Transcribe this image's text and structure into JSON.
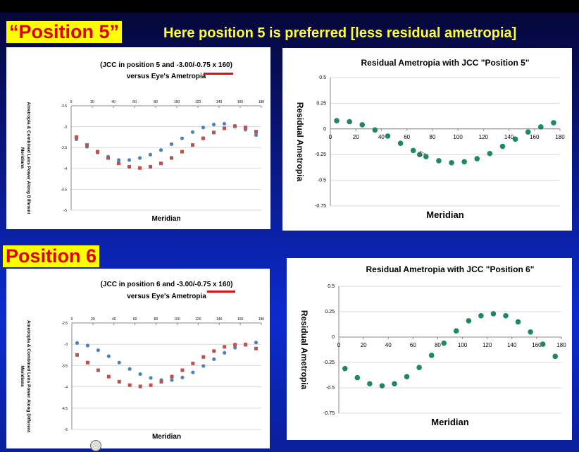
{
  "headline": "Here position 5 is preferred [less residual ametropia]",
  "labels": {
    "pos5": "“Position 5”",
    "pos6": "Position 6"
  },
  "colors": {
    "eye": "#4f81bd",
    "lens": "#c0504d",
    "residual": "#1e8a5c",
    "label_bg": "#ffff00",
    "label_fg": "#e00000",
    "headline": "#ffff33"
  },
  "chart_data": [
    {
      "type": "scatter",
      "title": "(JCC in position 5 and -3.00/-0.75 x 160)\nversus Eye's Ametropia",
      "xlabel": "Meridian",
      "ylabel": "Ametropia & Combined Lens Power Along Different Meridians",
      "xlim": [
        0,
        180
      ],
      "ylim": [
        -5,
        -2.5
      ],
      "xticks": [
        "0",
        "20",
        "40",
        "60",
        "80",
        "100",
        "120",
        "140",
        "160",
        "180"
      ],
      "yticks": [
        "-2.5",
        "-3",
        "-3.5",
        "-4",
        "-4.5",
        "-5"
      ],
      "x": [
        5,
        15,
        25,
        35,
        45,
        55,
        65,
        75,
        85,
        95,
        105,
        115,
        125,
        135,
        145,
        155,
        165,
        175
      ],
      "series": [
        {
          "values": [
            -3.3,
            -3.48,
            -3.62,
            -3.72,
            -3.8,
            -3.8,
            -3.75,
            -3.67,
            -3.56,
            -3.42,
            -3.28,
            -3.13,
            -3.02,
            -2.95,
            -2.93,
            -2.98,
            -3.07,
            -3.2
          ]
        },
        {
          "values": [
            -3.25,
            -3.44,
            -3.6,
            -3.75,
            -3.88,
            -3.96,
            -3.99,
            -3.96,
            -3.88,
            -3.75,
            -3.6,
            -3.44,
            -3.28,
            -3.14,
            -3.04,
            -2.99,
            -3.02,
            -3.12
          ]
        }
      ]
    },
    {
      "type": "scatter",
      "title": "Residual Ametropia with JCC \"Position 5\"",
      "xlabel": "Meridian",
      "ylabel": "Residual Ametropia",
      "xlim": [
        0,
        180
      ],
      "ylim": [
        -0.75,
        0.5
      ],
      "xticks": [
        "0",
        "20",
        "40",
        "60",
        "80",
        "100",
        "120",
        "140",
        "160",
        "180"
      ],
      "yticks": [
        "0.5",
        "0.25",
        "0",
        "-0.25",
        "-0.5",
        "-0.75"
      ],
      "x": [
        5,
        15,
        25,
        35,
        45,
        55,
        65,
        70,
        75,
        85,
        95,
        105,
        115,
        125,
        135,
        145,
        155,
        165,
        175
      ],
      "series": [
        {
          "values": [
            0.08,
            0.07,
            0.04,
            -0.01,
            -0.07,
            -0.14,
            -0.21,
            -0.25,
            -0.27,
            -0.31,
            -0.33,
            -0.32,
            -0.29,
            -0.24,
            -0.17,
            -0.1,
            -0.03,
            0.02,
            0.06
          ]
        }
      ]
    },
    {
      "type": "scatter",
      "title": "(JCC in position 6 and -3.00/-0.75 x 160)\nversus Eye's Ametropia",
      "xlabel": "Meridian",
      "ylabel": "Ametropia & Combined Lens Power Along Different Meridians",
      "xlim": [
        0,
        180
      ],
      "ylim": [
        -5,
        -2.5
      ],
      "xticks": [
        "0",
        "20",
        "40",
        "60",
        "80",
        "100",
        "120",
        "140",
        "160",
        "180"
      ],
      "yticks": [
        "-2.5",
        "-3",
        "-3.5",
        "-4",
        "-4.5",
        "-5"
      ],
      "x": [
        5,
        15,
        25,
        35,
        45,
        55,
        65,
        75,
        85,
        95,
        105,
        115,
        125,
        135,
        145,
        155,
        165,
        175
      ],
      "series": [
        {
          "values": [
            -2.97,
            -3.03,
            -3.14,
            -3.28,
            -3.43,
            -3.58,
            -3.7,
            -3.79,
            -3.84,
            -3.84,
            -3.78,
            -3.66,
            -3.51,
            -3.35,
            -3.2,
            -3.08,
            -3.0,
            -2.96
          ]
        },
        {
          "values": [
            -3.25,
            -3.43,
            -3.61,
            -3.76,
            -3.88,
            -3.96,
            -3.99,
            -3.96,
            -3.88,
            -3.76,
            -3.61,
            -3.45,
            -3.3,
            -3.16,
            -3.06,
            -3.01,
            -3.01,
            -3.1
          ]
        }
      ]
    },
    {
      "type": "scatter",
      "title": "Residual Ametropia with JCC \"Position 6\"",
      "xlabel": "Meridian",
      "ylabel": "Residual Ametropia",
      "xlim": [
        0,
        180
      ],
      "ylim": [
        -0.75,
        0.5
      ],
      "xticks": [
        "0",
        "20",
        "40",
        "60",
        "80",
        "100",
        "120",
        "140",
        "160",
        "180"
      ],
      "yticks": [
        "0.5",
        "0.25",
        "0",
        "-0.25",
        "-0.5",
        "-0.75"
      ],
      "x": [
        5,
        15,
        25,
        35,
        45,
        55,
        65,
        75,
        85,
        95,
        105,
        115,
        125,
        135,
        145,
        155,
        165,
        175
      ],
      "series": [
        {
          "values": [
            -0.31,
            -0.4,
            -0.46,
            -0.48,
            -0.46,
            -0.39,
            -0.3,
            -0.18,
            -0.06,
            0.06,
            0.16,
            0.21,
            0.23,
            0.21,
            0.15,
            0.05,
            -0.07,
            -0.19
          ]
        }
      ]
    }
  ]
}
